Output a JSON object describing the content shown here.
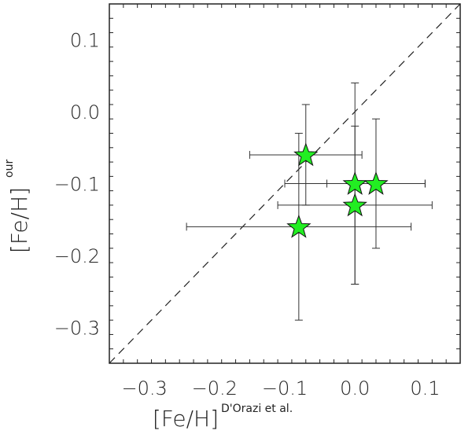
{
  "chart_data": {
    "type": "scatter",
    "xlabel_main": "[Fe/H]",
    "xlabel_sup": "D'Orazi et al.",
    "ylabel_main": "[Fe/H]",
    "ylabel_sup": "our",
    "xlim": [
      -0.35,
      0.15
    ],
    "ylim": [
      -0.35,
      0.15
    ],
    "xticks": [
      -0.3,
      -0.2,
      -0.1,
      0.0,
      0.1
    ],
    "xtick_labels": [
      "−0.3",
      "−0.2",
      "−0.1",
      "0.0",
      "0.1"
    ],
    "yticks": [
      -0.3,
      -0.2,
      -0.1,
      0.0,
      0.1
    ],
    "ytick_labels": [
      "−0.3",
      "−0.2",
      "−0.1",
      "0.0",
      "0.1"
    ],
    "reference_line": "y = x",
    "marker": "star",
    "marker_color": "#22ee22",
    "points": [
      {
        "x": -0.07,
        "y": -0.06,
        "xerr": 0.08,
        "yerr": 0.07
      },
      {
        "x": 0.0,
        "y": -0.1,
        "xerr": 0.1,
        "yerr": 0.14
      },
      {
        "x": 0.03,
        "y": -0.1,
        "xerr": 0.07,
        "yerr": 0.09
      },
      {
        "x": 0.0,
        "y": -0.13,
        "xerr": 0.11,
        "yerr": 0.11
      },
      {
        "x": -0.08,
        "y": -0.16,
        "xerr": 0.16,
        "yerr": 0.13
      }
    ],
    "grid": false,
    "legend": "none"
  }
}
